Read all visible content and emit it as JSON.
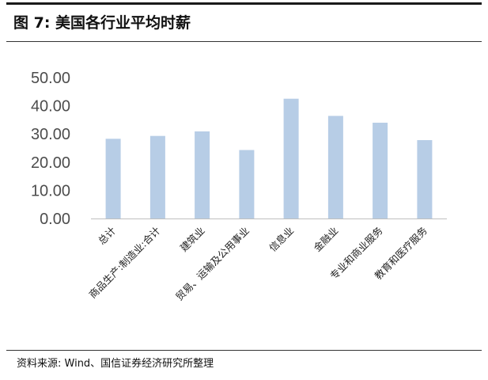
{
  "figure": {
    "title": "图 7:  美国各行业平均时薪",
    "source": "资料来源: Wind、国信证券经济研究所整理"
  },
  "chart_data": {
    "type": "bar",
    "categories": [
      "总计",
      "商品生产:制造业:合计",
      "建筑业",
      "贸易、运输及公用事业",
      "信息业",
      "金融业",
      "专业和商业服务",
      "教育和医疗服务"
    ],
    "values": [
      28.3,
      29.3,
      30.9,
      24.3,
      42.5,
      36.4,
      34.0,
      27.8
    ],
    "ylim": [
      0,
      50
    ],
    "yticks": [
      "0.00",
      "10.00",
      "20.00",
      "30.00",
      "40.00",
      "50.00"
    ],
    "grid": false,
    "bar_color": "#b7cde6",
    "axis_color": "#bfbfbf"
  }
}
